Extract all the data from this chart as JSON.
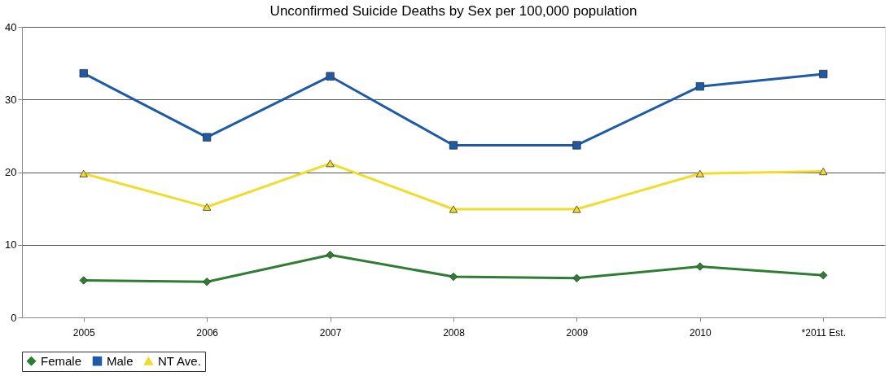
{
  "chart_data": {
    "type": "line",
    "title": "Unconfirmed Suicide Deaths by Sex per 100,000 population",
    "categories": [
      "2005",
      "2006",
      "2007",
      "2008",
      "2009",
      "2010",
      "*2011 Est."
    ],
    "series": [
      {
        "name": "Female",
        "color": "#2e7d32",
        "marker": "diamond",
        "values": [
          5.1,
          4.9,
          8.6,
          5.6,
          5.4,
          7.0,
          5.8
        ]
      },
      {
        "name": "Male",
        "color": "#1f5aa6",
        "marker": "square",
        "values": [
          33.6,
          24.8,
          33.2,
          23.7,
          23.7,
          31.8,
          33.5
        ]
      },
      {
        "name": "NT Ave.",
        "color": "#f2dc2a",
        "marker": "triangle",
        "values": [
          19.8,
          15.2,
          21.2,
          14.9,
          14.9,
          19.8,
          20.1
        ]
      }
    ],
    "ylim": [
      0,
      40
    ],
    "yticks": [
      0,
      10,
      20,
      30,
      40
    ],
    "grid": "y",
    "legend": "bottom",
    "line_style": "solid"
  }
}
